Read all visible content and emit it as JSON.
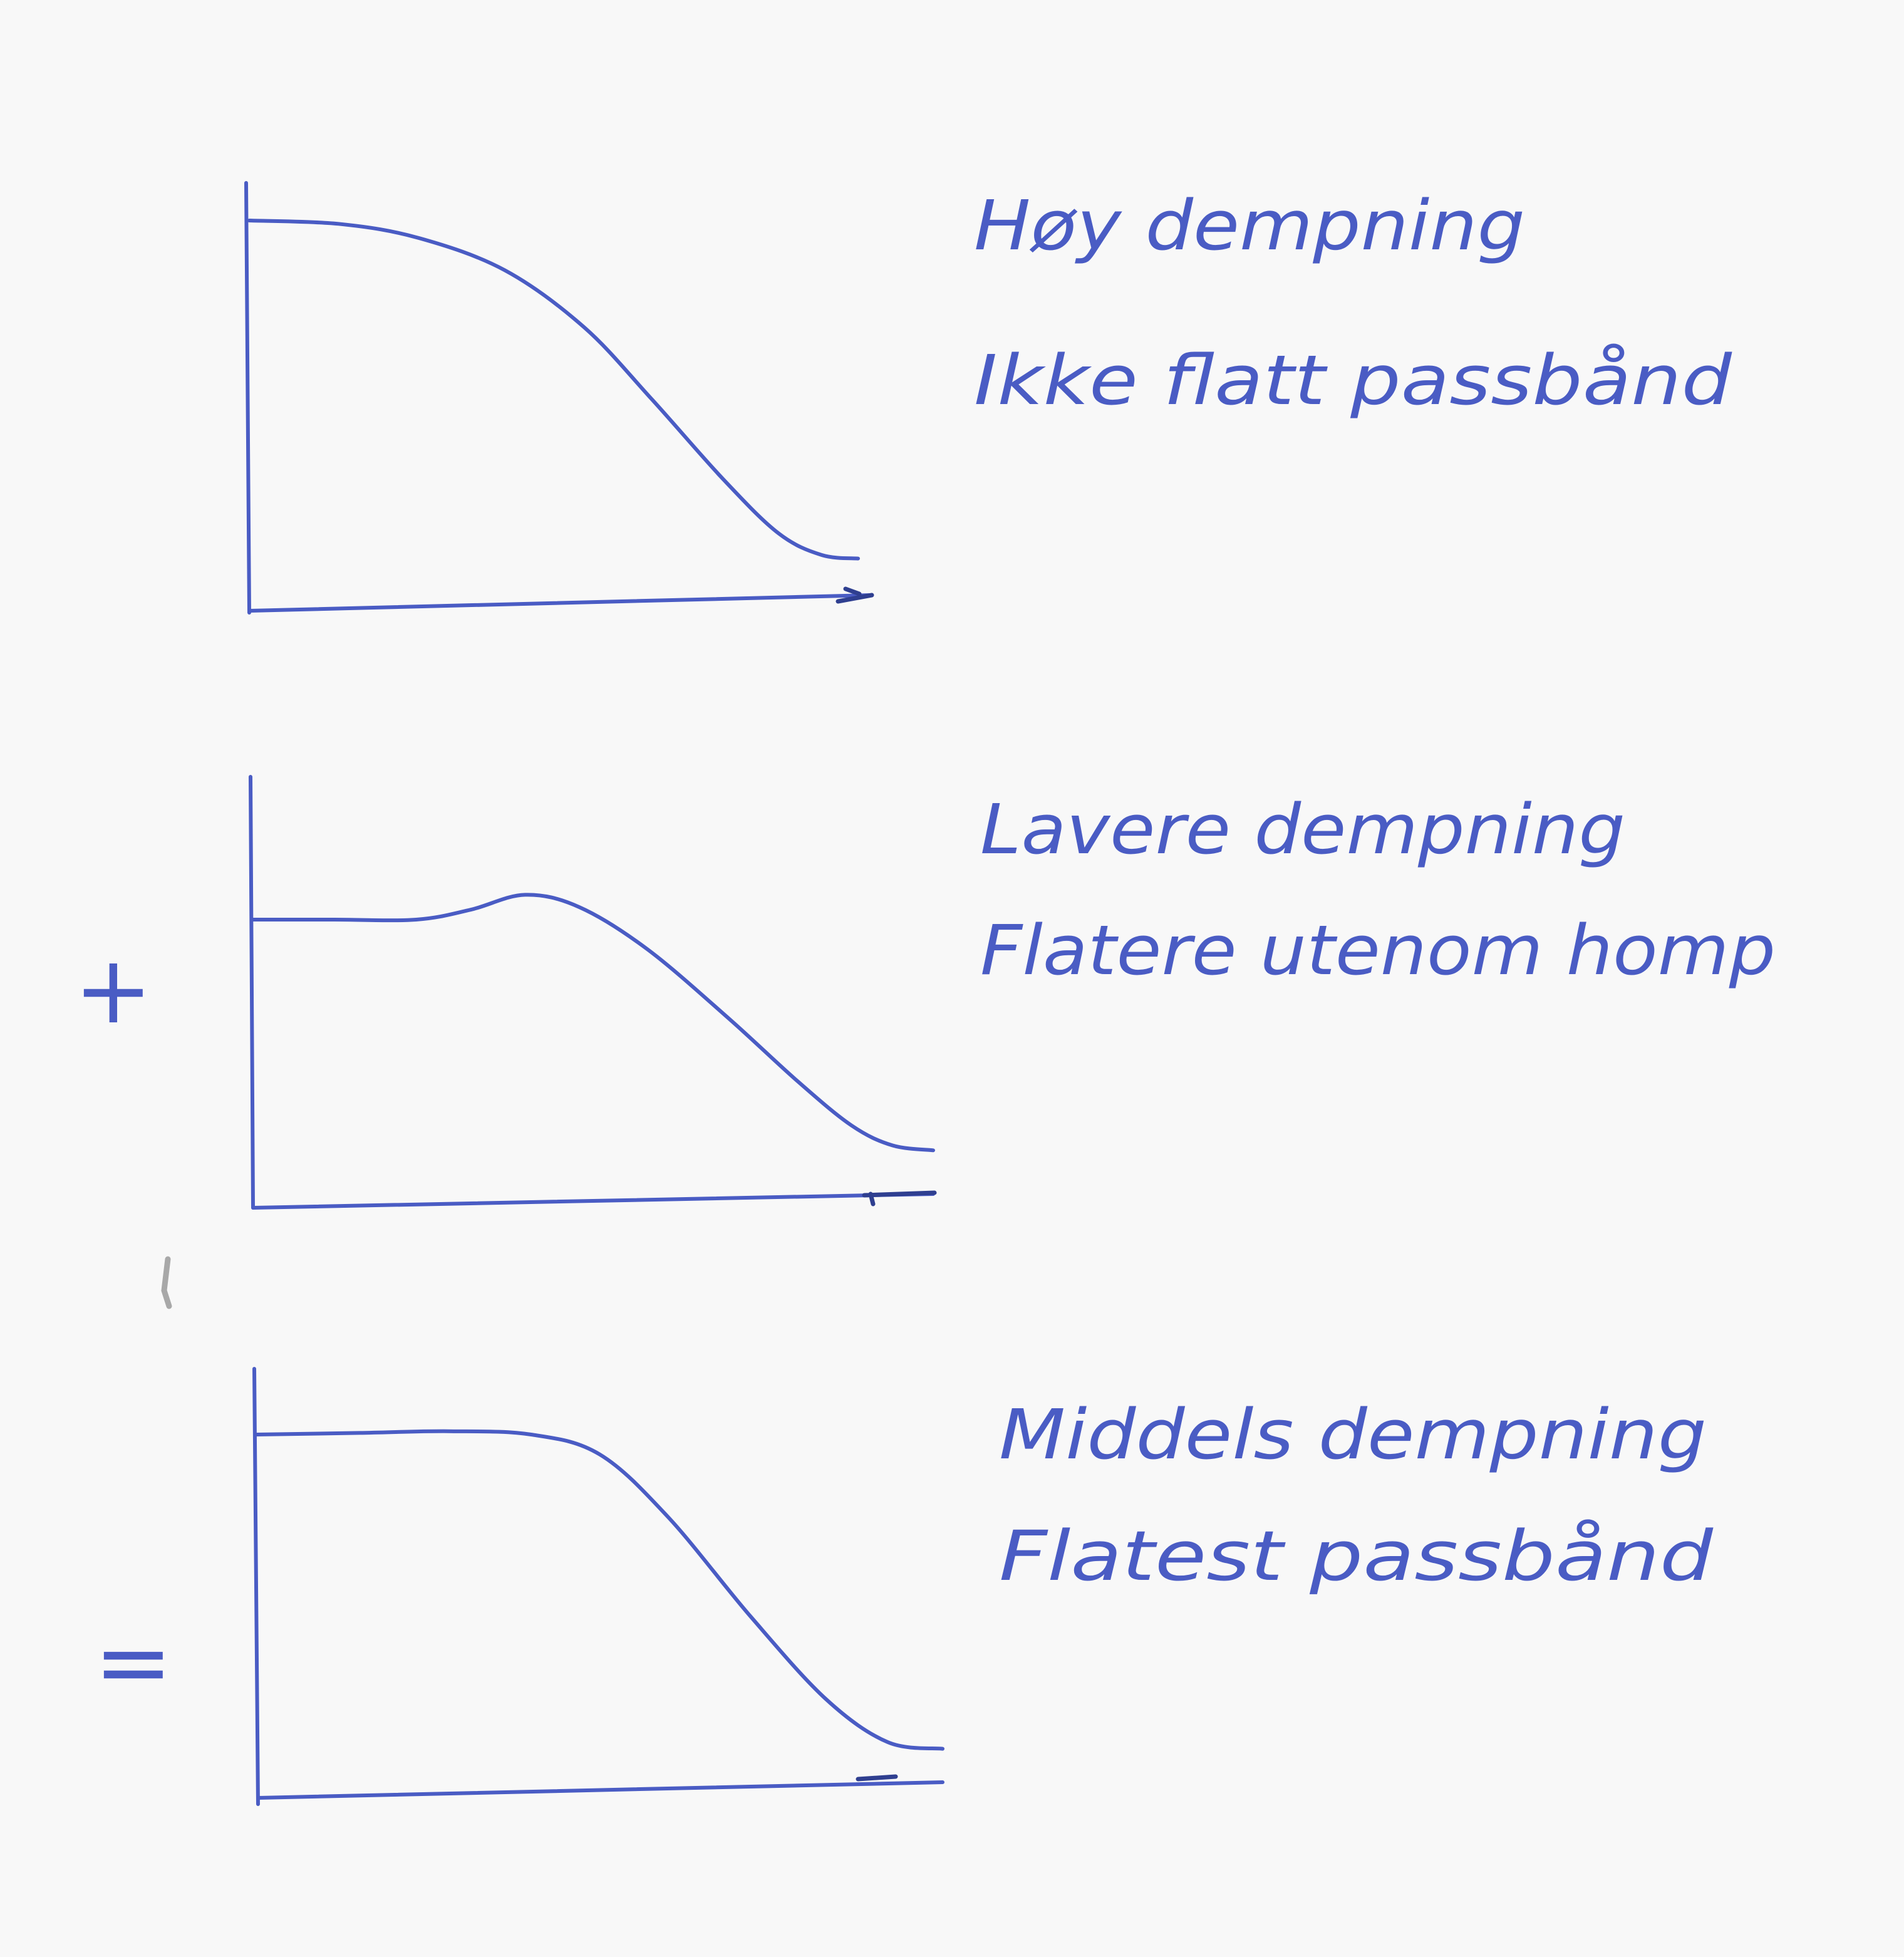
{
  "ink_color": "#4a5cc4",
  "panels": [
    {
      "line1": "Høy dempning",
      "line2": "Ikke flatt passbånd",
      "response": [
        [
          0.0,
          0.0
        ],
        [
          0.15,
          0.01
        ],
        [
          0.28,
          0.05
        ],
        [
          0.42,
          0.14
        ],
        [
          0.55,
          0.3
        ],
        [
          0.66,
          0.5
        ],
        [
          0.78,
          0.73
        ],
        [
          0.87,
          0.88
        ],
        [
          0.94,
          0.94
        ],
        [
          1.0,
          0.95
        ]
      ]
    },
    {
      "line1": "Lavere dempning",
      "line2": "Flatere utenom homp",
      "response": [
        [
          0.0,
          0.0
        ],
        [
          0.12,
          0.0
        ],
        [
          0.24,
          0.0
        ],
        [
          0.32,
          -0.04
        ],
        [
          0.4,
          -0.1
        ],
        [
          0.48,
          -0.05
        ],
        [
          0.58,
          0.12
        ],
        [
          0.7,
          0.4
        ],
        [
          0.8,
          0.65
        ],
        [
          0.88,
          0.83
        ],
        [
          0.94,
          0.91
        ],
        [
          1.0,
          0.93
        ]
      ]
    },
    {
      "line1": "Middels dempning",
      "line2": "Flatest passbånd",
      "response": [
        [
          0.0,
          0.0
        ],
        [
          0.15,
          -0.005
        ],
        [
          0.28,
          -0.01
        ],
        [
          0.4,
          0.0
        ],
        [
          0.5,
          0.06
        ],
        [
          0.6,
          0.25
        ],
        [
          0.72,
          0.55
        ],
        [
          0.83,
          0.8
        ],
        [
          0.92,
          0.93
        ],
        [
          1.0,
          0.95
        ]
      ]
    }
  ],
  "operators": {
    "plus": "+",
    "equals": "="
  }
}
